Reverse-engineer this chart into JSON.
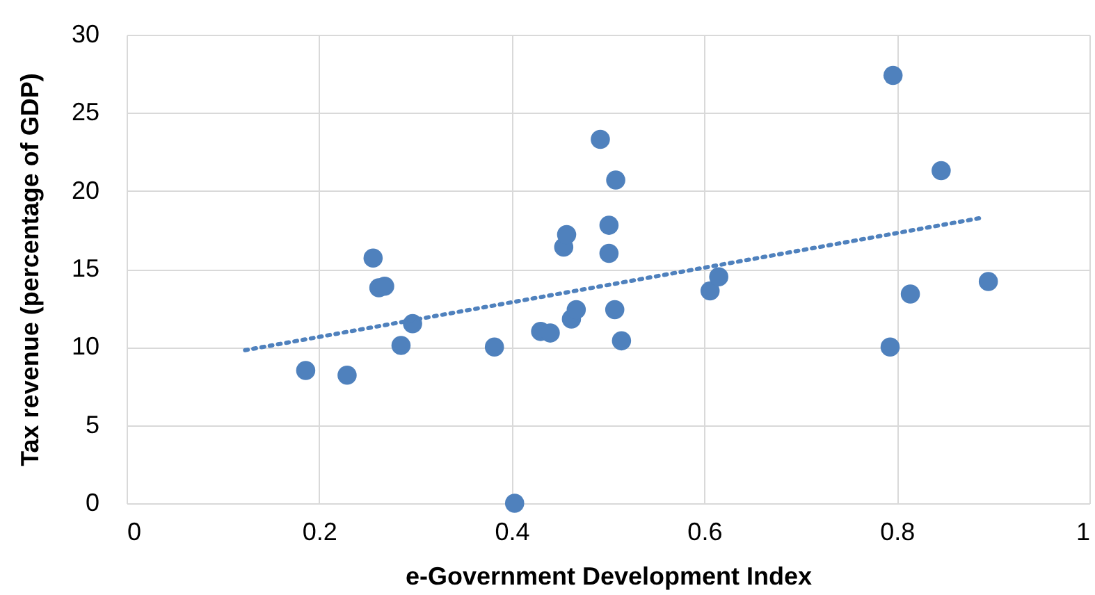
{
  "chart_data": {
    "type": "scatter",
    "xlabel": "e-Government Development Index",
    "ylabel": "Tax revenue (percentage of GDP)",
    "xlim": [
      0,
      1
    ],
    "xticks": [
      0,
      0.2,
      0.4,
      0.6,
      0.8,
      1
    ],
    "ylim": [
      0,
      30
    ],
    "yticks": [
      0,
      5,
      10,
      15,
      20,
      25,
      30
    ],
    "grid": true,
    "series": [
      {
        "color": "#4f81bd",
        "marker": "circle",
        "x": [
          0.186,
          0.256,
          0.262,
          0.268,
          0.229,
          0.285,
          0.297,
          0.382,
          0.403,
          0.43,
          0.44,
          0.462,
          0.467,
          0.454,
          0.457,
          0.492,
          0.508,
          0.501,
          0.501,
          0.507,
          0.514,
          0.606,
          0.615,
          0.796,
          0.846,
          0.814,
          0.793,
          0.895
        ],
        "values": [
          8.5,
          15.7,
          13.8,
          13.9,
          8.2,
          10.1,
          11.5,
          10.0,
          0,
          11.0,
          10.9,
          11.8,
          12.4,
          16.4,
          17.2,
          23.3,
          20.7,
          17.8,
          16.0,
          12.4,
          10.4,
          13.6,
          14.5,
          27.4,
          21.3,
          13.4,
          10.0,
          14.2
        ]
      },
      {
        "type": "line",
        "color": "#4f81bd",
        "marker": "none",
        "line_style": "dotted",
        "x": [
          0.123,
          0.89
        ],
        "values": [
          9.8,
          18.3
        ]
      }
    ]
  }
}
